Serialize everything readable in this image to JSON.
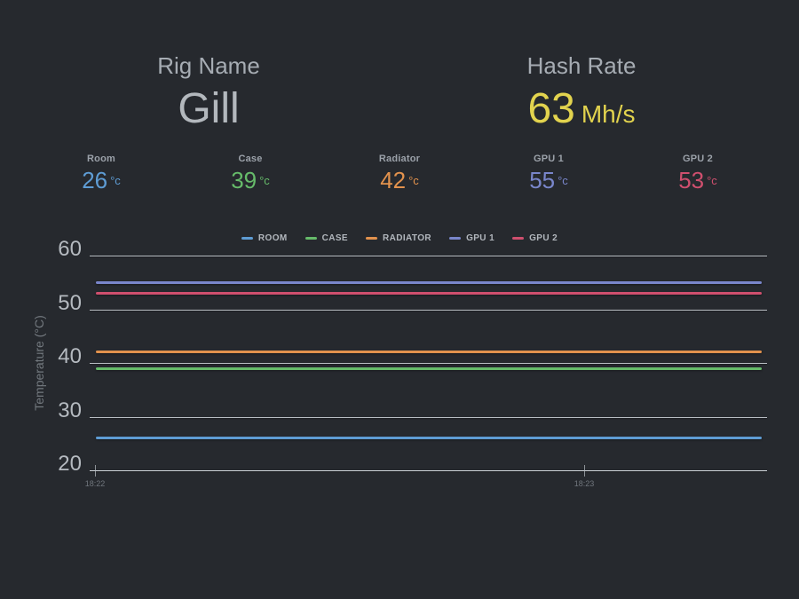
{
  "colors": {
    "background": "#26292e",
    "accent_yellow": "#e2d34e",
    "grid": "#cdd2d8",
    "room_blue": "#5e9cd4",
    "case_green": "#66bb6a",
    "radiator_orange": "#e2924d",
    "gpu1_indigo": "#7986cb",
    "gpu2_pink": "#cf4f6e"
  },
  "header": {
    "rig": {
      "label": "Rig Name",
      "value": "Gill"
    },
    "hashrate": {
      "label": "Hash Rate",
      "value": "63",
      "unit": "Mh/s",
      "color": "#e2d34e"
    }
  },
  "stats": {
    "items": [
      {
        "label": "Room",
        "value": "26",
        "unit": "°c",
        "color": "#5e9cd4"
      },
      {
        "label": "Case",
        "value": "39",
        "unit": "°c",
        "color": "#66bb6a"
      },
      {
        "label": "Radiator",
        "value": "42",
        "unit": "°c",
        "color": "#e2924d"
      },
      {
        "label": "GPU 1",
        "value": "55",
        "unit": "°c",
        "color": "#7986cb"
      },
      {
        "label": "GPU 2",
        "value": "53",
        "unit": "°c",
        "color": "#cf4f6e"
      }
    ]
  },
  "chart_data": {
    "type": "line",
    "title": "",
    "xlabel": "",
    "ylabel": "Temperature (°C)",
    "ylim": [
      20,
      60
    ],
    "yticks": [
      20,
      30,
      40,
      50,
      60
    ],
    "x": [
      "18:22",
      "18:23"
    ],
    "grid": true,
    "legend_position": "top",
    "series": [
      {
        "name": "ROOM",
        "color": "#5e9cd4",
        "values": [
          26,
          26
        ]
      },
      {
        "name": "CASE",
        "color": "#66bb6a",
        "values": [
          39,
          39
        ]
      },
      {
        "name": "RADIATOR",
        "color": "#e2924d",
        "values": [
          42,
          42
        ]
      },
      {
        "name": "GPU 1",
        "color": "#7986cb",
        "values": [
          55,
          55
        ]
      },
      {
        "name": "GPU 2",
        "color": "#cf4f6e",
        "values": [
          53,
          53
        ]
      }
    ]
  }
}
